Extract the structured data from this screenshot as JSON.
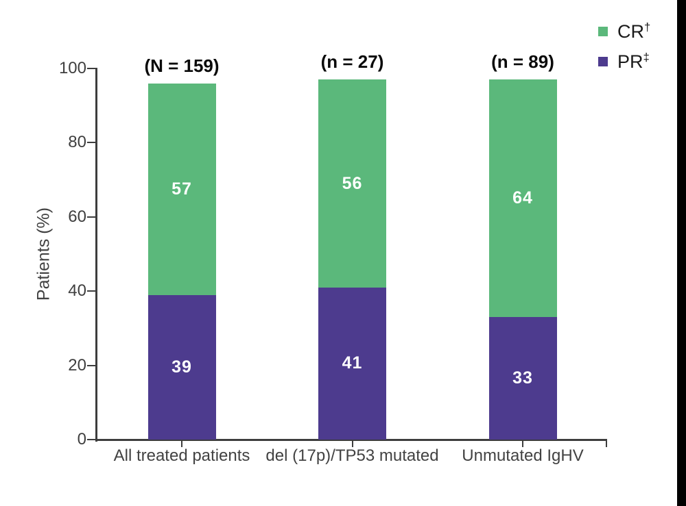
{
  "figure": {
    "background": "#ffffff",
    "right_edge_bar_color": "#000000",
    "axis_color": "#3d3d3d",
    "tick_label_color": "#3f3f3f"
  },
  "chart_data": {
    "type": "bar",
    "stacked": true,
    "title": "",
    "xlabel": "",
    "ylabel": "Patients (%)",
    "ylim": [
      0,
      100
    ],
    "yticks": [
      0,
      20,
      40,
      60,
      80,
      100
    ],
    "grid": false,
    "categories": [
      "All treated patients",
      "del (17p)/TP53 mutated",
      "Unmutated IgHV"
    ],
    "group_annotations": [
      "(N = 159)",
      "(n = 27)",
      "(n = 89)"
    ],
    "series": [
      {
        "name": "PR",
        "name_sup": "‡",
        "color": "#4d3b8e",
        "values": [
          39,
          41,
          33
        ]
      },
      {
        "name": "CR",
        "name_sup": "†",
        "color": "#5bb87b",
        "values": [
          57,
          56,
          64
        ]
      }
    ],
    "bar_value_label_color": "#ffffff",
    "legend": {
      "position": "top-right",
      "items": [
        {
          "label": "CR",
          "sup": "†",
          "color": "#5bb87b"
        },
        {
          "label": "PR",
          "sup": "‡",
          "color": "#4d3b8e"
        }
      ]
    }
  }
}
